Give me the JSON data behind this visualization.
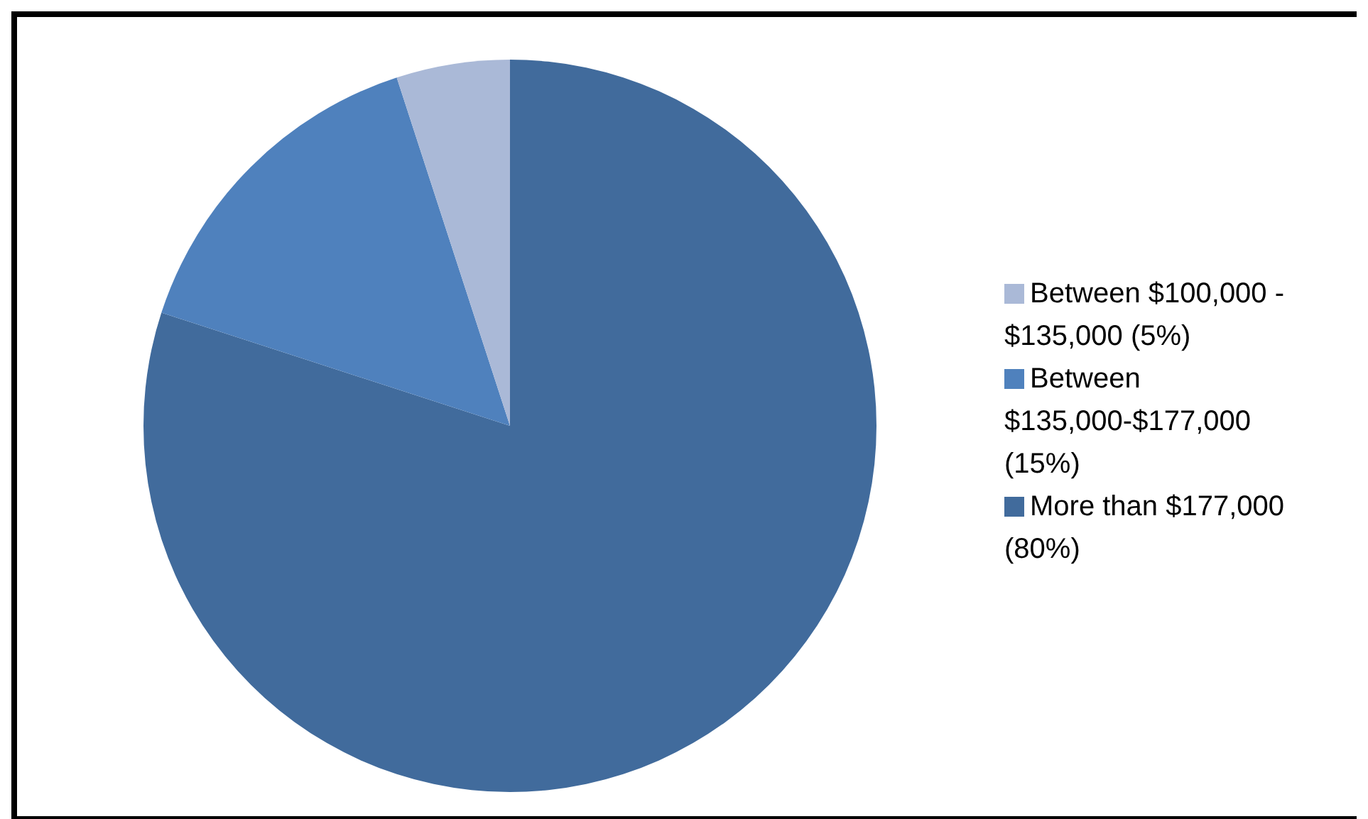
{
  "chart_data": {
    "type": "pie",
    "categories": [
      "More than $177,000 (80%)",
      "Between $135,000-$177,000 (15%)",
      "Between $100,000 - $135,000 (5%)"
    ],
    "values": [
      80,
      15,
      5
    ],
    "colors": [
      "#416b9c",
      "#4f81bd",
      "#aab9d7"
    ],
    "legend": "right"
  }
}
